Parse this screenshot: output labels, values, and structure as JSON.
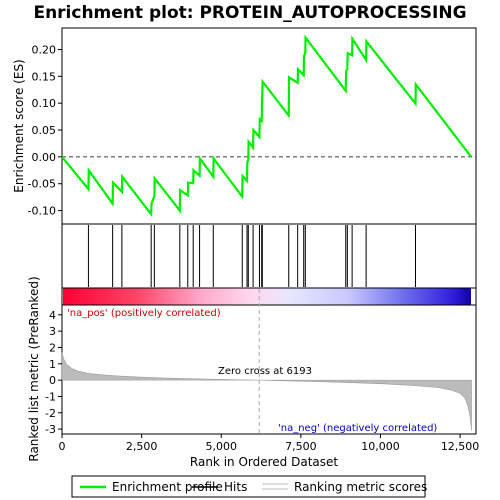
{
  "chart_data": {
    "type": "line",
    "title": "Enrichment plot: PROTEIN_AUTOPROCESSING",
    "xlabel": "Rank in Ordered Dataset",
    "xlim": [
      0,
      13000
    ],
    "x_ticks": [
      0,
      2500,
      5000,
      7500,
      10000,
      12500
    ],
    "x_tick_labels": [
      "0",
      "2,500",
      "5,000",
      "7,500",
      "10,000",
      "12,500"
    ],
    "es_panel": {
      "ylabel": "Enrichment score (ES)",
      "ylim": [
        -0.125,
        0.24
      ],
      "y_ticks": [
        -0.1,
        -0.05,
        0.0,
        0.05,
        0.1,
        0.15,
        0.2
      ],
      "y_tick_labels": [
        "-0.10",
        "-0.05",
        "0.00",
        "0.05",
        "0.10",
        "0.15",
        "0.20"
      ],
      "series": [
        {
          "name": "Enrichment profile",
          "color": "#00ee00",
          "x": [
            0,
            830,
            840,
            1590,
            1600,
            1880,
            1890,
            2800,
            2810,
            2900,
            2910,
            3700,
            3710,
            3950,
            3960,
            4120,
            4130,
            4320,
            4330,
            4750,
            4760,
            5660,
            5670,
            5810,
            5820,
            5850,
            5860,
            6000,
            6010,
            6200,
            6210,
            6270,
            6280,
            6290,
            6300,
            7120,
            7130,
            7400,
            7410,
            7590,
            7600,
            7640,
            7650,
            8910,
            8920,
            8960,
            8970,
            9110,
            9120,
            9550,
            9560,
            11100,
            11110,
            12850
          ],
          "y": [
            0.0,
            -0.06,
            -0.025,
            -0.087,
            -0.048,
            -0.065,
            -0.037,
            -0.107,
            -0.087,
            -0.073,
            -0.04,
            -0.1,
            -0.062,
            -0.072,
            -0.048,
            -0.049,
            -0.025,
            -0.035,
            -0.003,
            -0.037,
            -0.003,
            -0.074,
            -0.036,
            -0.045,
            -0.01,
            -0.005,
            0.028,
            0.017,
            0.05,
            0.037,
            0.07,
            0.067,
            0.102,
            0.118,
            0.14,
            0.077,
            0.148,
            0.138,
            0.163,
            0.152,
            0.187,
            0.194,
            0.222,
            0.123,
            0.16,
            0.163,
            0.193,
            0.189,
            0.22,
            0.18,
            0.215,
            0.099,
            0.135,
            0.0
          ]
        }
      ]
    },
    "hits": [
      830,
      1590,
      1880,
      2800,
      2900,
      3700,
      3950,
      4120,
      4320,
      4750,
      5660,
      5810,
      5850,
      6000,
      6200,
      6270,
      6290,
      7120,
      7400,
      7590,
      7640,
      8910,
      8960,
      9110,
      9550,
      11100
    ],
    "metric_panel": {
      "ylabel": "Ranked list metric (PreRanked)",
      "ylim": [
        -3.3,
        4.6
      ],
      "y_ticks": [
        -3,
        -2,
        -1,
        0,
        1,
        2,
        3,
        4
      ],
      "y_tick_labels": [
        "-3",
        "-2",
        "-1",
        "0",
        "1",
        "2",
        "3",
        "4"
      ],
      "x": [
        0,
        50,
        150,
        300,
        500,
        800,
        1200,
        1800,
        2500,
        3500,
        4500,
        5500,
        6193,
        7000,
        8000,
        9000,
        10000,
        11000,
        11800,
        12200,
        12500,
        12650,
        12750,
        12820,
        12860
      ],
      "values": [
        1.7,
        1.3,
        0.95,
        0.72,
        0.55,
        0.42,
        0.33,
        0.25,
        0.18,
        0.11,
        0.06,
        0.02,
        0.0,
        -0.04,
        -0.09,
        -0.15,
        -0.22,
        -0.33,
        -0.45,
        -0.6,
        -0.8,
        -1.1,
        -1.6,
        -2.3,
        -3.1
      ],
      "zero_cross_label": "Zero cross at 6193",
      "zero_cross": 6193,
      "pos_label": "'na_pos' (positively correlated)",
      "neg_label": "'na_neg' (negatively correlated)"
    },
    "legend": {
      "placement": "bottom",
      "entries": [
        {
          "label": "Enrichment profile",
          "color": "#00ee00"
        },
        {
          "label": "Hits",
          "color": "#000000"
        },
        {
          "label": "Ranking metric scores",
          "color": "#bbbbbb"
        }
      ]
    },
    "colors": {
      "profile": "#00ee00",
      "pos_label": "#cc0000",
      "neg_label": "#0000cc",
      "metric_fill": "#bbbbbb",
      "zero_line": "#aaaaaa"
    }
  }
}
